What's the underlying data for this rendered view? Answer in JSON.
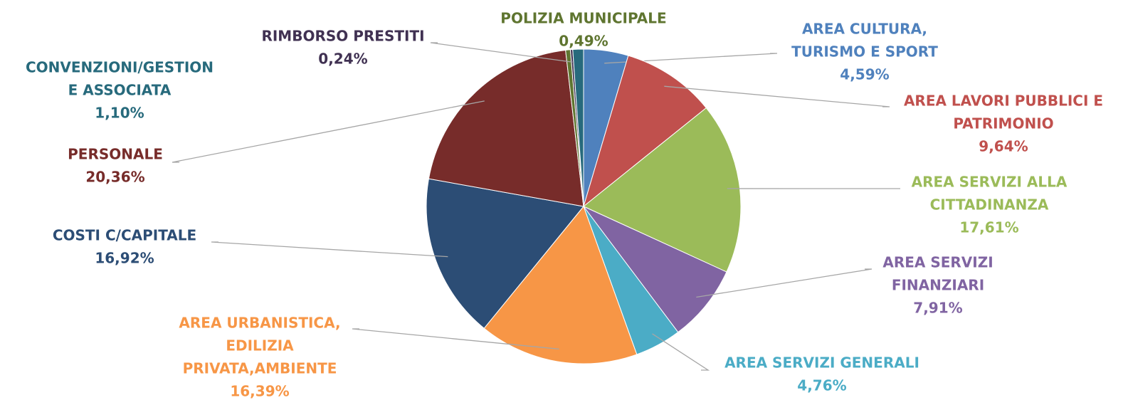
{
  "chart_data": {
    "type": "pie",
    "categories": [
      [
        "AREA CULTURA,",
        "TURISMO E SPORT"
      ],
      [
        "AREA LAVORI PUBBLICI E",
        "PATRIMONIO"
      ],
      [
        "AREA SERVIZI ALLA",
        "CITTADINANZA"
      ],
      [
        "AREA SERVIZI",
        "FINANZIARI"
      ],
      [
        "AREA SERVIZI GENERALI"
      ],
      [
        "AREA URBANISTICA,",
        "EDILIZIA",
        "PRIVATA,AMBIENTE"
      ],
      [
        "COSTI C/CAPITALE"
      ],
      [
        "PERSONALE"
      ],
      [
        "POLIZIA MUNICIPALE"
      ],
      [
        "RIMBORSO PRESTITI"
      ],
      [
        "CONVENZIONI/GESTION",
        "E ASSOCIATA"
      ]
    ],
    "values": [
      4.59,
      9.64,
      17.61,
      7.91,
      4.76,
      16.39,
      16.92,
      20.36,
      0.49,
      0.24,
      1.1
    ],
    "value_labels": [
      "4,59%",
      "9,64%",
      "17,61%",
      "7,91%",
      "4,76%",
      "16,39%",
      "16,92%",
      "20,36%",
      "0,49%",
      "0,24%",
      "1,10%"
    ],
    "colors": [
      "#4f81bd",
      "#c0504d",
      "#9bbb59",
      "#8064a2",
      "#4bacc6",
      "#f79646",
      "#2c4d75",
      "#772c2a",
      "#5f7530",
      "#403152",
      "#276a7c"
    ]
  }
}
